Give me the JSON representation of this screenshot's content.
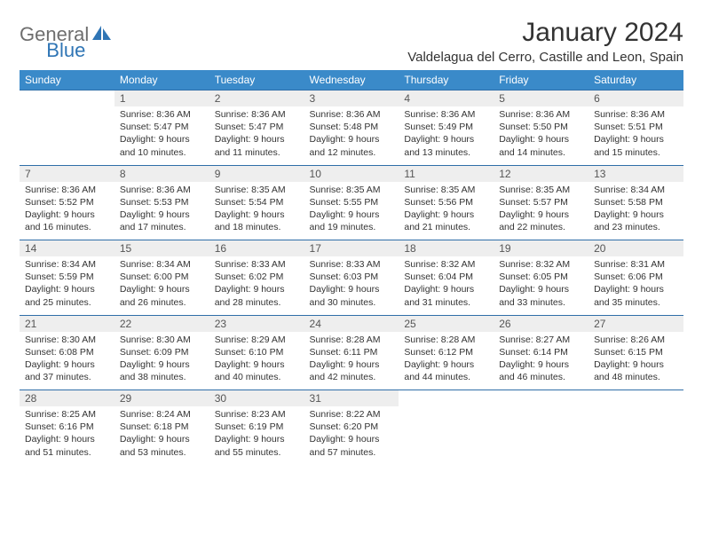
{
  "brand": {
    "general": "General",
    "blue": "Blue"
  },
  "title": "January 2024",
  "location": "Valdelagua del Cerro, Castille and Leon, Spain",
  "colors": {
    "header_bg": "#3a8ac9",
    "border": "#2f6ea8",
    "daynum_bg": "#eeeeee",
    "logo_gray": "#6e6e6e",
    "logo_blue": "#2f75b5"
  },
  "day_headers": [
    "Sunday",
    "Monday",
    "Tuesday",
    "Wednesday",
    "Thursday",
    "Friday",
    "Saturday"
  ],
  "weeks": [
    {
      "nums": [
        "",
        "1",
        "2",
        "3",
        "4",
        "5",
        "6"
      ],
      "cells": [
        {
          "empty": true
        },
        {
          "sunrise": "Sunrise: 8:36 AM",
          "sunset": "Sunset: 5:47 PM",
          "daylight1": "Daylight: 9 hours",
          "daylight2": "and 10 minutes."
        },
        {
          "sunrise": "Sunrise: 8:36 AM",
          "sunset": "Sunset: 5:47 PM",
          "daylight1": "Daylight: 9 hours",
          "daylight2": "and 11 minutes."
        },
        {
          "sunrise": "Sunrise: 8:36 AM",
          "sunset": "Sunset: 5:48 PM",
          "daylight1": "Daylight: 9 hours",
          "daylight2": "and 12 minutes."
        },
        {
          "sunrise": "Sunrise: 8:36 AM",
          "sunset": "Sunset: 5:49 PM",
          "daylight1": "Daylight: 9 hours",
          "daylight2": "and 13 minutes."
        },
        {
          "sunrise": "Sunrise: 8:36 AM",
          "sunset": "Sunset: 5:50 PM",
          "daylight1": "Daylight: 9 hours",
          "daylight2": "and 14 minutes."
        },
        {
          "sunrise": "Sunrise: 8:36 AM",
          "sunset": "Sunset: 5:51 PM",
          "daylight1": "Daylight: 9 hours",
          "daylight2": "and 15 minutes."
        }
      ]
    },
    {
      "nums": [
        "7",
        "8",
        "9",
        "10",
        "11",
        "12",
        "13"
      ],
      "cells": [
        {
          "sunrise": "Sunrise: 8:36 AM",
          "sunset": "Sunset: 5:52 PM",
          "daylight1": "Daylight: 9 hours",
          "daylight2": "and 16 minutes."
        },
        {
          "sunrise": "Sunrise: 8:36 AM",
          "sunset": "Sunset: 5:53 PM",
          "daylight1": "Daylight: 9 hours",
          "daylight2": "and 17 minutes."
        },
        {
          "sunrise": "Sunrise: 8:35 AM",
          "sunset": "Sunset: 5:54 PM",
          "daylight1": "Daylight: 9 hours",
          "daylight2": "and 18 minutes."
        },
        {
          "sunrise": "Sunrise: 8:35 AM",
          "sunset": "Sunset: 5:55 PM",
          "daylight1": "Daylight: 9 hours",
          "daylight2": "and 19 minutes."
        },
        {
          "sunrise": "Sunrise: 8:35 AM",
          "sunset": "Sunset: 5:56 PM",
          "daylight1": "Daylight: 9 hours",
          "daylight2": "and 21 minutes."
        },
        {
          "sunrise": "Sunrise: 8:35 AM",
          "sunset": "Sunset: 5:57 PM",
          "daylight1": "Daylight: 9 hours",
          "daylight2": "and 22 minutes."
        },
        {
          "sunrise": "Sunrise: 8:34 AM",
          "sunset": "Sunset: 5:58 PM",
          "daylight1": "Daylight: 9 hours",
          "daylight2": "and 23 minutes."
        }
      ]
    },
    {
      "nums": [
        "14",
        "15",
        "16",
        "17",
        "18",
        "19",
        "20"
      ],
      "cells": [
        {
          "sunrise": "Sunrise: 8:34 AM",
          "sunset": "Sunset: 5:59 PM",
          "daylight1": "Daylight: 9 hours",
          "daylight2": "and 25 minutes."
        },
        {
          "sunrise": "Sunrise: 8:34 AM",
          "sunset": "Sunset: 6:00 PM",
          "daylight1": "Daylight: 9 hours",
          "daylight2": "and 26 minutes."
        },
        {
          "sunrise": "Sunrise: 8:33 AM",
          "sunset": "Sunset: 6:02 PM",
          "daylight1": "Daylight: 9 hours",
          "daylight2": "and 28 minutes."
        },
        {
          "sunrise": "Sunrise: 8:33 AM",
          "sunset": "Sunset: 6:03 PM",
          "daylight1": "Daylight: 9 hours",
          "daylight2": "and 30 minutes."
        },
        {
          "sunrise": "Sunrise: 8:32 AM",
          "sunset": "Sunset: 6:04 PM",
          "daylight1": "Daylight: 9 hours",
          "daylight2": "and 31 minutes."
        },
        {
          "sunrise": "Sunrise: 8:32 AM",
          "sunset": "Sunset: 6:05 PM",
          "daylight1": "Daylight: 9 hours",
          "daylight2": "and 33 minutes."
        },
        {
          "sunrise": "Sunrise: 8:31 AM",
          "sunset": "Sunset: 6:06 PM",
          "daylight1": "Daylight: 9 hours",
          "daylight2": "and 35 minutes."
        }
      ]
    },
    {
      "nums": [
        "21",
        "22",
        "23",
        "24",
        "25",
        "26",
        "27"
      ],
      "cells": [
        {
          "sunrise": "Sunrise: 8:30 AM",
          "sunset": "Sunset: 6:08 PM",
          "daylight1": "Daylight: 9 hours",
          "daylight2": "and 37 minutes."
        },
        {
          "sunrise": "Sunrise: 8:30 AM",
          "sunset": "Sunset: 6:09 PM",
          "daylight1": "Daylight: 9 hours",
          "daylight2": "and 38 minutes."
        },
        {
          "sunrise": "Sunrise: 8:29 AM",
          "sunset": "Sunset: 6:10 PM",
          "daylight1": "Daylight: 9 hours",
          "daylight2": "and 40 minutes."
        },
        {
          "sunrise": "Sunrise: 8:28 AM",
          "sunset": "Sunset: 6:11 PM",
          "daylight1": "Daylight: 9 hours",
          "daylight2": "and 42 minutes."
        },
        {
          "sunrise": "Sunrise: 8:28 AM",
          "sunset": "Sunset: 6:12 PM",
          "daylight1": "Daylight: 9 hours",
          "daylight2": "and 44 minutes."
        },
        {
          "sunrise": "Sunrise: 8:27 AM",
          "sunset": "Sunset: 6:14 PM",
          "daylight1": "Daylight: 9 hours",
          "daylight2": "and 46 minutes."
        },
        {
          "sunrise": "Sunrise: 8:26 AM",
          "sunset": "Sunset: 6:15 PM",
          "daylight1": "Daylight: 9 hours",
          "daylight2": "and 48 minutes."
        }
      ]
    },
    {
      "nums": [
        "28",
        "29",
        "30",
        "31",
        "",
        "",
        ""
      ],
      "cells": [
        {
          "sunrise": "Sunrise: 8:25 AM",
          "sunset": "Sunset: 6:16 PM",
          "daylight1": "Daylight: 9 hours",
          "daylight2": "and 51 minutes."
        },
        {
          "sunrise": "Sunrise: 8:24 AM",
          "sunset": "Sunset: 6:18 PM",
          "daylight1": "Daylight: 9 hours",
          "daylight2": "and 53 minutes."
        },
        {
          "sunrise": "Sunrise: 8:23 AM",
          "sunset": "Sunset: 6:19 PM",
          "daylight1": "Daylight: 9 hours",
          "daylight2": "and 55 minutes."
        },
        {
          "sunrise": "Sunrise: 8:22 AM",
          "sunset": "Sunset: 6:20 PM",
          "daylight1": "Daylight: 9 hours",
          "daylight2": "and 57 minutes."
        },
        {
          "empty": true
        },
        {
          "empty": true
        },
        {
          "empty": true
        }
      ]
    }
  ]
}
